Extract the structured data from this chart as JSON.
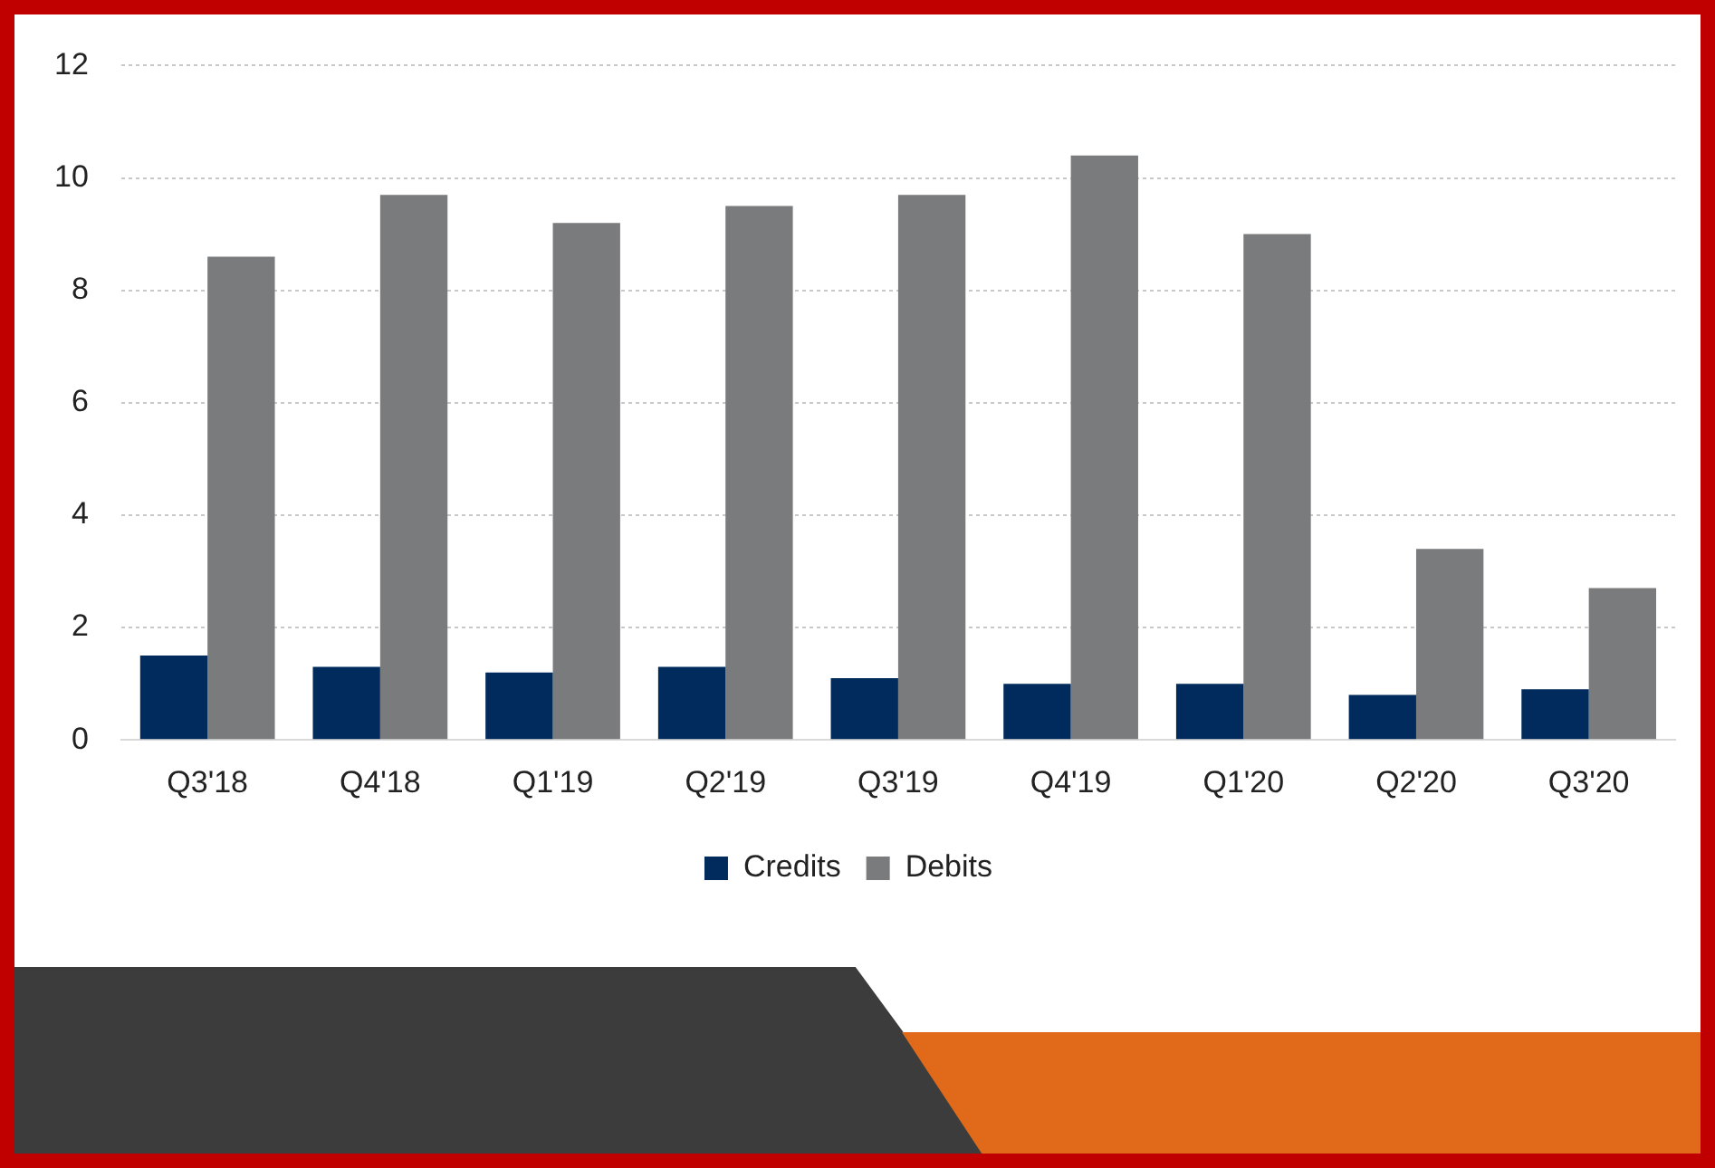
{
  "chart_data": {
    "type": "bar",
    "categories": [
      "Q3'18",
      "Q4'18",
      "Q1'19",
      "Q2'19",
      "Q3'19",
      "Q4'19",
      "Q1'20",
      "Q2'20",
      "Q3'20"
    ],
    "series": [
      {
        "name": "Credits",
        "color": "#002b5c",
        "values": [
          1.5,
          1.3,
          1.2,
          1.3,
          1.1,
          1.0,
          1.0,
          0.8,
          0.9
        ]
      },
      {
        "name": "Debits",
        "color": "#7a7b7d",
        "values": [
          8.6,
          9.7,
          9.2,
          9.5,
          9.7,
          10.4,
          9.0,
          3.4,
          2.7
        ]
      }
    ],
    "ylim": [
      0,
      12
    ],
    "yticks": [
      0,
      2,
      4,
      6,
      8,
      10,
      12
    ],
    "grid": "y",
    "legend": "bottom"
  }
}
